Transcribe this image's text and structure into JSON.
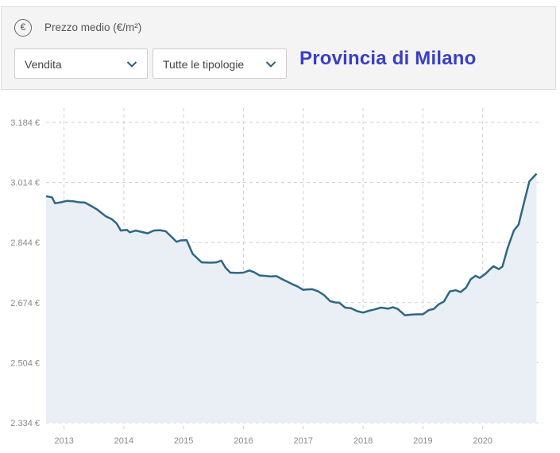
{
  "header": {
    "currency_icon": "euro-icon",
    "currency_symbol": "€",
    "metric_label": "Prezzo medio (€/m²)",
    "select_contract": "Vendita",
    "select_type": "Tutte le tipologie",
    "region_title": "Provincia di Milano"
  },
  "colors": {
    "line": "#2f6685",
    "area": "#e9eff4",
    "title": "#3a3fc4"
  },
  "chart_data": {
    "type": "area",
    "title": "",
    "xlabel": "",
    "ylabel": "",
    "grid": true,
    "ylim": [
      2334,
      3184
    ],
    "xlim": [
      2012.7,
      2021.0
    ],
    "y_ticks": [
      2334,
      2504,
      2674,
      2844,
      3014,
      3184
    ],
    "y_tick_labels": [
      "2.334 €",
      "2.504 €",
      "2.674 €",
      "2.844 €",
      "3.014 €",
      "3.184 €"
    ],
    "x_ticks": [
      2013,
      2014,
      2015,
      2016,
      2017,
      2018,
      2019,
      2020
    ],
    "x_tick_labels": [
      "2013",
      "2014",
      "2015",
      "2016",
      "2017",
      "2018",
      "2019",
      "2020"
    ],
    "series": [
      {
        "x": [
          2012.7,
          2012.8,
          2012.85,
          2012.95,
          2013.05,
          2013.15,
          2013.25,
          2013.35,
          2013.45,
          2013.55,
          2013.7,
          2013.8,
          2013.88,
          2013.95,
          2014.05,
          2014.1,
          2014.2,
          2014.3,
          2014.4,
          2014.5,
          2014.6,
          2014.7,
          2014.8,
          2014.88,
          2014.95,
          2015.05,
          2015.15,
          2015.3,
          2015.45,
          2015.55,
          2015.63,
          2015.7,
          2015.78,
          2015.9,
          2016.0,
          2016.1,
          2016.18,
          2016.27,
          2016.35,
          2016.45,
          2016.55,
          2016.65,
          2016.75,
          2016.82,
          2016.9,
          2017.0,
          2017.05,
          2017.15,
          2017.25,
          2017.35,
          2017.45,
          2017.55,
          2017.6,
          2017.7,
          2017.8,
          2017.9,
          2018.0,
          2018.1,
          2018.2,
          2018.3,
          2018.42,
          2018.5,
          2018.58,
          2018.7,
          2018.8,
          2018.9,
          2019.0,
          2019.1,
          2019.18,
          2019.27,
          2019.35,
          2019.45,
          2019.55,
          2019.63,
          2019.72,
          2019.8,
          2019.88,
          2019.95,
          2020.05,
          2020.12,
          2020.18,
          2020.27,
          2020.33,
          2020.42,
          2020.52,
          2020.6,
          2020.68,
          2020.78,
          2020.9
        ],
        "y": [
          2975,
          2972,
          2955,
          2958,
          2962,
          2961,
          2958,
          2957,
          2948,
          2938,
          2918,
          2910,
          2898,
          2878,
          2880,
          2873,
          2878,
          2874,
          2870,
          2878,
          2879,
          2876,
          2860,
          2846,
          2850,
          2851,
          2812,
          2788,
          2787,
          2788,
          2793,
          2773,
          2759,
          2758,
          2759,
          2765,
          2760,
          2751,
          2750,
          2748,
          2749,
          2740,
          2732,
          2726,
          2720,
          2710,
          2711,
          2712,
          2706,
          2695,
          2678,
          2674,
          2674,
          2660,
          2658,
          2650,
          2646,
          2651,
          2655,
          2660,
          2657,
          2661,
          2656,
          2638,
          2640,
          2641,
          2641,
          2653,
          2656,
          2670,
          2677,
          2706,
          2709,
          2704,
          2716,
          2740,
          2750,
          2744,
          2756,
          2768,
          2777,
          2769,
          2776,
          2830,
          2878,
          2895,
          2950,
          3017,
          3039
        ]
      }
    ]
  }
}
